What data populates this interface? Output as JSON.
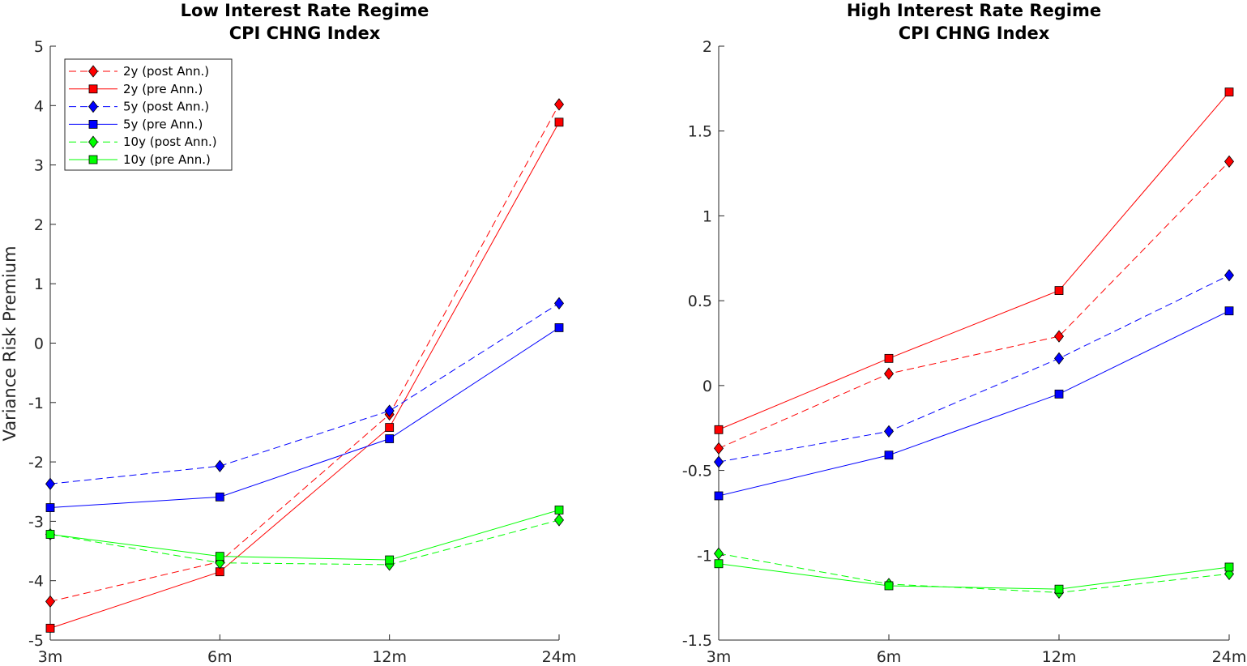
{
  "chart_data": [
    {
      "type": "line",
      "title_line1": "Low Interest Rate Regime",
      "title_line2": "CPI CHNG Index",
      "ylabel": "Variance Risk Premium",
      "xlabel": "",
      "categories": [
        "3m",
        "6m",
        "12m",
        "24m"
      ],
      "ylim": [
        -5,
        5
      ],
      "yticks": [
        -5,
        -4,
        -3,
        -2,
        -1,
        0,
        1,
        2,
        3,
        4,
        5
      ],
      "ytick_labels": [
        "-5",
        "-4",
        "-3",
        "-2",
        "-1",
        "0",
        "1",
        "2",
        "3",
        "4",
        "5"
      ],
      "legend": "top-left",
      "grid": false,
      "series": [
        {
          "name": "2y (post Ann.)",
          "color": "#ff0000",
          "dash": true,
          "marker": "diamond",
          "values": [
            -4.35,
            -3.68,
            -1.2,
            4.02
          ]
        },
        {
          "name": "2y (pre Ann.)",
          "color": "#ff0000",
          "dash": false,
          "marker": "square",
          "values": [
            -4.8,
            -3.85,
            -1.42,
            3.72
          ]
        },
        {
          "name": "5y (post Ann.)",
          "color": "#0000ff",
          "dash": true,
          "marker": "diamond",
          "values": [
            -2.37,
            -2.07,
            -1.14,
            0.67
          ]
        },
        {
          "name": "5y (pre Ann.)",
          "color": "#0000ff",
          "dash": false,
          "marker": "square",
          "values": [
            -2.77,
            -2.59,
            -1.61,
            0.26
          ]
        },
        {
          "name": "10y (post Ann.)",
          "color": "#00ff00",
          "dash": true,
          "marker": "diamond",
          "values": [
            -3.22,
            -3.7,
            -3.73,
            -2.98
          ]
        },
        {
          "name": "10y (pre Ann.)",
          "color": "#00ff00",
          "dash": false,
          "marker": "square",
          "values": [
            -3.22,
            -3.59,
            -3.65,
            -2.81
          ]
        }
      ]
    },
    {
      "type": "line",
      "title_line1": "High Interest Rate Regime",
      "title_line2": "CPI CHNG Index",
      "ylabel": "",
      "xlabel": "",
      "categories": [
        "3m",
        "6m",
        "12m",
        "24m"
      ],
      "ylim": [
        -1.5,
        2
      ],
      "yticks": [
        -1.5,
        -1,
        -0.5,
        0,
        0.5,
        1,
        1.5,
        2
      ],
      "ytick_labels": [
        "-1.5",
        "-1",
        "-0.5",
        "0",
        "0.5",
        "1",
        "1.5",
        "2"
      ],
      "grid": false,
      "series": [
        {
          "color": "#ff0000",
          "dash": true,
          "marker": "diamond",
          "values": [
            -0.37,
            0.07,
            0.29,
            1.32
          ]
        },
        {
          "color": "#ff0000",
          "dash": false,
          "marker": "square",
          "values": [
            -0.26,
            0.16,
            0.56,
            1.73
          ]
        },
        {
          "color": "#0000ff",
          "dash": true,
          "marker": "diamond",
          "values": [
            -0.45,
            -0.27,
            0.16,
            0.65
          ]
        },
        {
          "color": "#0000ff",
          "dash": false,
          "marker": "square",
          "values": [
            -0.65,
            -0.41,
            -0.05,
            0.44
          ]
        },
        {
          "color": "#00ff00",
          "dash": true,
          "marker": "diamond",
          "values": [
            -0.99,
            -1.17,
            -1.22,
            -1.11
          ]
        },
        {
          "color": "#00ff00",
          "dash": false,
          "marker": "square",
          "values": [
            -1.05,
            -1.18,
            -1.2,
            -1.07
          ]
        }
      ]
    }
  ]
}
